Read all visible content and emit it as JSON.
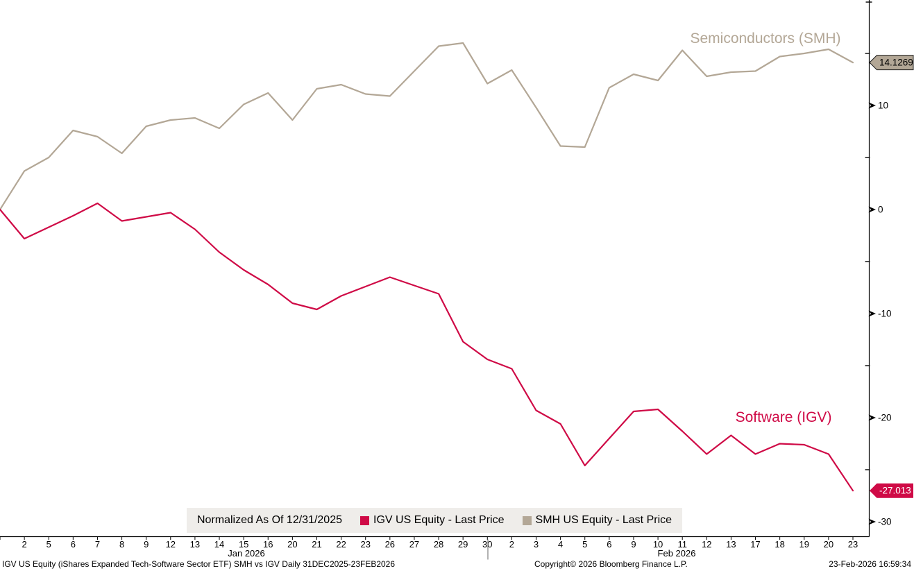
{
  "chart_data": {
    "type": "line",
    "legend_title": "Normalized As Of 12/31/2025",
    "x_axis": {
      "day_labels": [
        "",
        "2",
        "5",
        "6",
        "7",
        "8",
        "9",
        "12",
        "13",
        "14",
        "15",
        "16",
        "20",
        "21",
        "22",
        "23",
        "26",
        "27",
        "28",
        "29",
        "30",
        "2",
        "3",
        "4",
        "5",
        "6",
        "9",
        "10",
        "11",
        "12",
        "13",
        "17",
        "18",
        "19",
        "20",
        "23"
      ],
      "month_labels": [
        {
          "label": "Jan 2026"
        },
        {
          "label": "Feb 2026"
        }
      ]
    },
    "y_axis": {
      "major_ticks": [
        10,
        0,
        -10,
        -20,
        -30
      ],
      "minor_ticks": [
        15,
        5,
        -5,
        -15,
        -25
      ],
      "range": [
        -31.4,
        20.1
      ]
    },
    "series": [
      {
        "id": "smh",
        "name": "SMH US Equity - Last Price",
        "chart_label": "Semiconductors (SMH)",
        "color": "#b3a796",
        "last_price": "14.1269",
        "tag_bg": "#b3a796",
        "tag_text": "#000000",
        "tag_border": "#1a1a1a",
        "values": [
          0.0,
          3.7,
          5.0,
          7.6,
          7.0,
          5.4,
          8.0,
          8.6,
          8.8,
          7.8,
          10.1,
          11.2,
          8.6,
          11.6,
          12.0,
          11.1,
          10.9,
          13.3,
          15.7,
          16.0,
          12.1,
          13.4,
          9.8,
          6.1,
          6.0,
          11.7,
          13.0,
          12.4,
          15.3,
          12.8,
          13.2,
          13.3,
          14.7,
          15.0,
          15.4,
          14.1269
        ]
      },
      {
        "id": "igv",
        "name": "IGV US Equity - Last Price",
        "chart_label": "Software (IGV)",
        "color": "#cf0a46",
        "last_price": "-27.013",
        "tag_bg": "#cf0a46",
        "tag_text": "#ffffff",
        "tag_border": "",
        "values": [
          0.0,
          -2.8,
          -1.7,
          -0.6,
          0.6,
          -1.1,
          -0.7,
          -0.3,
          -1.9,
          -4.1,
          -5.8,
          -7.2,
          -9.0,
          -9.6,
          -8.3,
          -7.4,
          -6.5,
          -7.3,
          -8.1,
          -12.7,
          -14.4,
          -15.3,
          -19.3,
          -20.6,
          -24.6,
          -22.0,
          -19.4,
          -19.2,
          -21.3,
          -23.5,
          -21.7,
          -23.5,
          -22.5,
          -22.6,
          -23.5,
          -27.013
        ]
      }
    ]
  },
  "footer": {
    "description": "IGV US Equity (iShares Expanded Tech-Software Sector ETF) SMH vs IGV Daily 31DEC2025-23FEB2026",
    "copyright": "Copyright© 2026 Bloomberg Finance L.P.",
    "timestamp": "23-Feb-2026 16:59:34"
  }
}
